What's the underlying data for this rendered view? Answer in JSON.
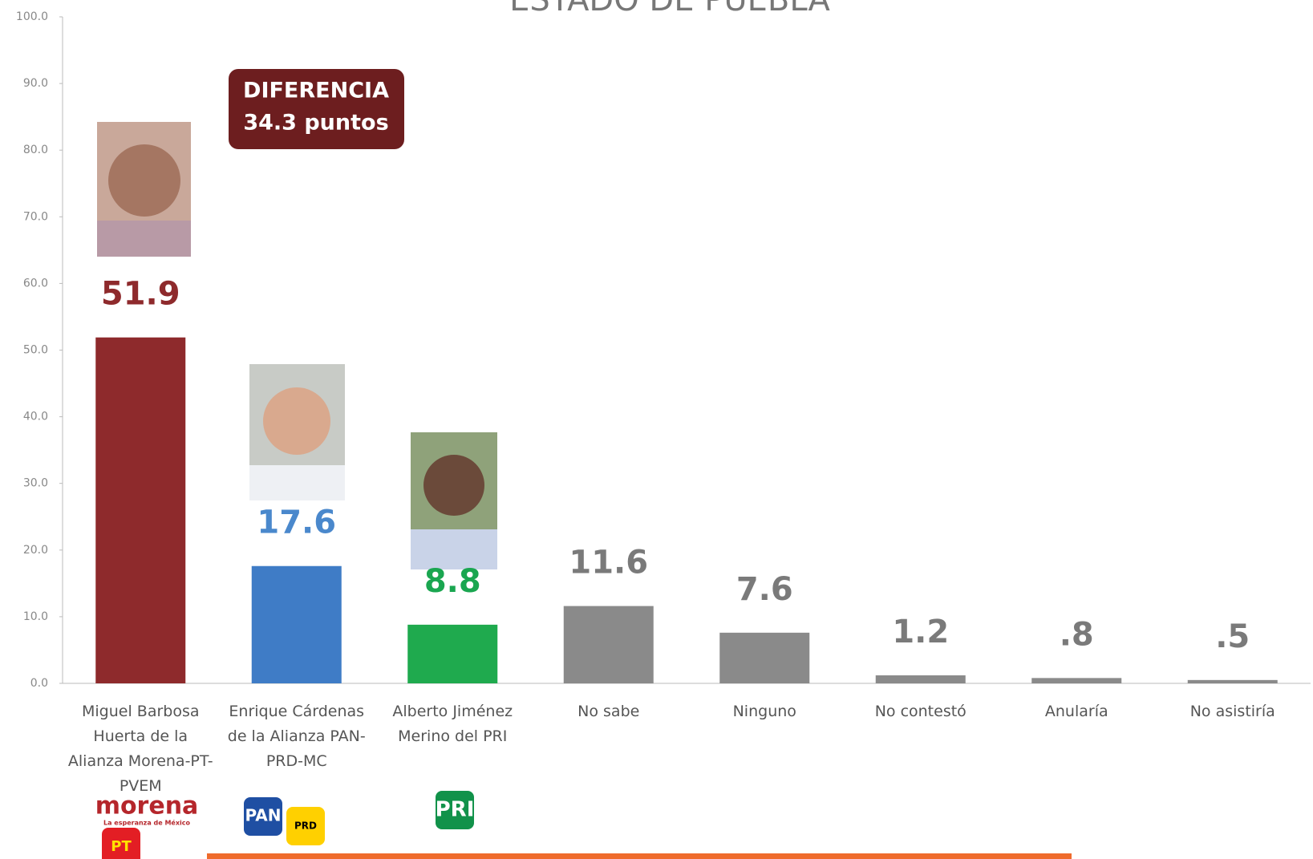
{
  "chart_data": {
    "type": "bar",
    "title": "ESTADO DE PUEBLA",
    "categories": [
      "Miguel Barbosa Huerta de la Alianza Morena-PT-PVEM",
      "Enrique Cárdenas de la Alianza PAN-PRD-MC",
      "Alberto Jiménez Merino del PRI",
      "No sabe",
      "Ninguno",
      "No contestó",
      "Anularía",
      "No asistiría"
    ],
    "values": [
      51.9,
      17.6,
      8.8,
      11.6,
      7.6,
      1.2,
      0.8,
      0.5
    ],
    "value_labels": [
      "51.9",
      "17.6",
      "8.8",
      "11.6",
      "7.6",
      "1.2",
      ".8",
      ".5"
    ],
    "colors": [
      "#8e2a2c",
      "#3f7cc6",
      "#1faa4e",
      "#8a8a8a",
      "#8a8a8a",
      "#8a8a8a",
      "#8a8a8a",
      "#8a8a8a"
    ],
    "label_colors": [
      "#8e2a2c",
      "#4a88cc",
      "#1aa650",
      "#7a7a7a",
      "#7a7a7a",
      "#7a7a7a",
      "#7a7a7a",
      "#7a7a7a"
    ],
    "ylim": [
      0,
      100
    ],
    "yticks": [
      {
        "value": 0,
        "label": "0.0"
      },
      {
        "value": 10,
        "label": "10.0"
      },
      {
        "value": 20,
        "label": "20.0"
      },
      {
        "value": 30,
        "label": "30.0"
      },
      {
        "value": 40,
        "label": "40.0"
      },
      {
        "value": 50,
        "label": "50.0"
      },
      {
        "value": 60,
        "label": "60.0"
      },
      {
        "value": 70,
        "label": "70.0"
      },
      {
        "value": 80,
        "label": "80.0"
      },
      {
        "value": 90,
        "label": "90.0"
      },
      {
        "value": 100,
        "label": "100.0"
      }
    ],
    "grid": false,
    "annotations": [
      "DIFERENCIA",
      "34.3 puntos"
    ],
    "logos": [
      "morena",
      "La esperanza de México",
      "PT",
      "PAN",
      "PRD",
      "PRI"
    ]
  }
}
